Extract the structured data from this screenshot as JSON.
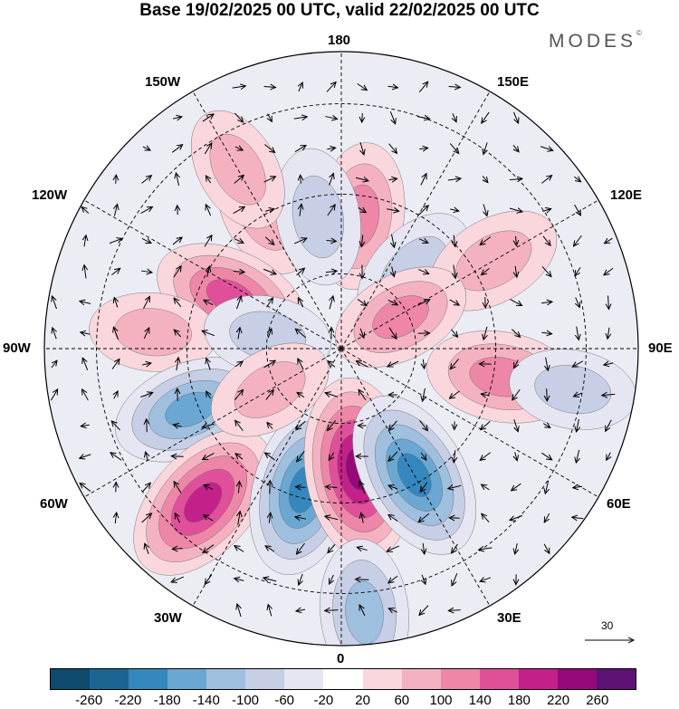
{
  "title": "Base 19/02/2025 00 UTC, valid 22/02/2025 00 UTC",
  "brand": "MODES",
  "brand_mark": "©",
  "lon_labels": {
    "n180": "180",
    "w150": "150W",
    "e150": "150E",
    "w120": "120W",
    "e120": "120E",
    "w90": "90W",
    "e90": "90E",
    "w60": "60W",
    "e60": "60E",
    "w30": "30W",
    "e30": "30E",
    "s0": "0"
  },
  "reference_vector": "30",
  "colorbar": {
    "colors": [
      "#0d4a6b",
      "#1b6593",
      "#3588bd",
      "#6aa7d2",
      "#9fbfdf",
      "#c7cfe6",
      "#e6e5f2",
      "#ffffff",
      "#fad7dd",
      "#f4b2c1",
      "#ee86a8",
      "#e0509a",
      "#c4208a",
      "#96097a",
      "#5e1273"
    ],
    "ticks": [
      "-260",
      "-220",
      "-180",
      "-140",
      "-100",
      "-60",
      "-20",
      "20",
      "60",
      "100",
      "140",
      "180",
      "220",
      "260"
    ]
  },
  "anomaly_centers": [
    {
      "lon": -150,
      "lat": 50,
      "value": 60
    },
    {
      "lon": 172,
      "lat": 55,
      "value": 120
    },
    {
      "lon": -170,
      "lat": 55,
      "value": -90
    },
    {
      "lon": 137,
      "lat": 62,
      "value": -90
    },
    {
      "lon": 120,
      "lat": 45,
      "value": 90
    },
    {
      "lon": -115,
      "lat": 58,
      "value": 150
    },
    {
      "lon": 118,
      "lat": 72,
      "value": 100
    },
    {
      "lon": -95,
      "lat": 42,
      "value": 60
    },
    {
      "lon": 80,
      "lat": 48,
      "value": 130
    },
    {
      "lon": -68,
      "lat": 48,
      "value": -150
    },
    {
      "lon": -42,
      "lat": 38,
      "value": 200
    },
    {
      "lon": -15,
      "lat": 52,
      "value": -200
    },
    {
      "lon": 8,
      "lat": 58,
      "value": 230
    },
    {
      "lon": 30,
      "lat": 52,
      "value": -200
    },
    {
      "lon": 5,
      "lat": 26,
      "value": -120
    },
    {
      "lon": 80,
      "lat": 32,
      "value": -60
    },
    {
      "lon": -100,
      "lat": 70,
      "value": -60
    },
    {
      "lon": -150,
      "lat": 38,
      "value": 60
    },
    {
      "lon": -60,
      "lat": 68,
      "value": 60
    }
  ]
}
